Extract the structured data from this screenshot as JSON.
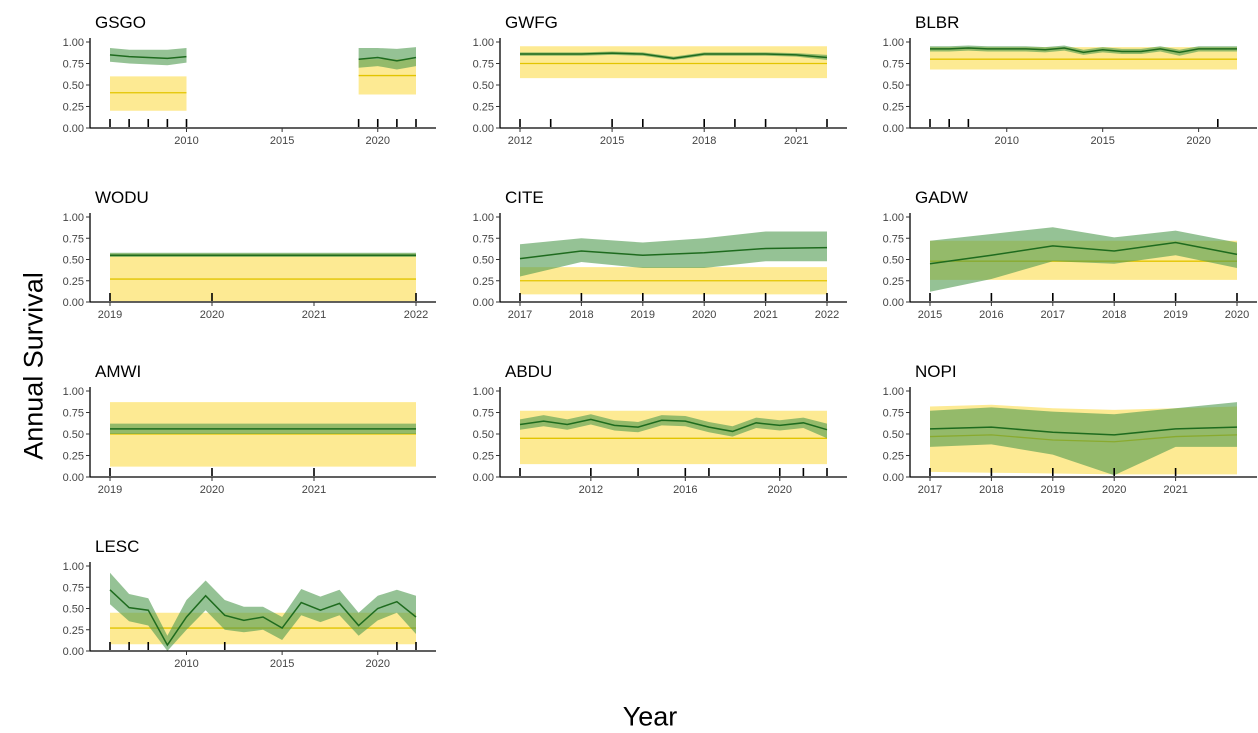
{
  "ylabel": "Annual Survival",
  "xlabel": "Year",
  "colors": {
    "fixed_band": "#fde680",
    "fixed_line": "#e2c400",
    "annual_band": "#4e9a4e",
    "annual_line": "#1e6b1e"
  },
  "chart_data": [
    {
      "type": "area",
      "title": "GSGO",
      "xlim": [
        2006,
        2022
      ],
      "ylim": [
        0,
        1
      ],
      "xticks": [
        2010,
        2015,
        2020
      ],
      "yticks": [
        0.0,
        0.25,
        0.5,
        0.75,
        1.0
      ],
      "rug": [
        2006,
        2007,
        2008,
        2009,
        2010,
        2019,
        2020,
        2021,
        2022
      ],
      "fixed_segments": [
        {
          "x": [
            2006,
            2010
          ],
          "mean": 0.41,
          "lower": 0.2,
          "upper": 0.6
        },
        {
          "x": [
            2019,
            2022
          ],
          "mean": 0.61,
          "lower": 0.39,
          "upper": 0.8
        }
      ],
      "annual_segments": [
        {
          "x": [
            2006,
            2007,
            2008,
            2009,
            2010
          ],
          "mean": [
            0.85,
            0.83,
            0.82,
            0.81,
            0.83
          ],
          "lower": [
            0.77,
            0.75,
            0.74,
            0.73,
            0.76
          ],
          "upper": [
            0.93,
            0.91,
            0.91,
            0.91,
            0.93
          ]
        },
        {
          "x": [
            2019,
            2020,
            2021,
            2022
          ],
          "mean": [
            0.8,
            0.82,
            0.78,
            0.82
          ],
          "lower": [
            0.7,
            0.72,
            0.68,
            0.72
          ],
          "upper": [
            0.93,
            0.93,
            0.92,
            0.94
          ]
        }
      ]
    },
    {
      "type": "area",
      "title": "GWFG",
      "xlim": [
        2012,
        2022
      ],
      "ylim": [
        0,
        1
      ],
      "xticks": [
        2012,
        2015,
        2018,
        2021
      ],
      "yticks": [
        0.0,
        0.25,
        0.5,
        0.75,
        1.0
      ],
      "rug": [
        2012,
        2013,
        2015,
        2016,
        2018,
        2019,
        2020,
        2022
      ],
      "fixed_segments": [
        {
          "x": [
            2012,
            2022
          ],
          "mean": 0.75,
          "lower": 0.58,
          "upper": 0.95
        }
      ],
      "annual_segments": [
        {
          "x": [
            2012,
            2013,
            2014,
            2015,
            2016,
            2017,
            2018,
            2019,
            2020,
            2021,
            2022
          ],
          "mean": [
            0.86,
            0.86,
            0.86,
            0.87,
            0.86,
            0.81,
            0.86,
            0.86,
            0.86,
            0.85,
            0.82
          ],
          "lower": [
            0.84,
            0.84,
            0.84,
            0.85,
            0.84,
            0.79,
            0.84,
            0.84,
            0.84,
            0.83,
            0.79
          ],
          "upper": [
            0.88,
            0.88,
            0.88,
            0.89,
            0.88,
            0.83,
            0.88,
            0.88,
            0.88,
            0.87,
            0.85
          ]
        }
      ]
    },
    {
      "type": "area",
      "title": "BLBR",
      "xlim": [
        2006,
        2022
      ],
      "ylim": [
        0,
        1
      ],
      "xticks": [
        2010,
        2015,
        2020
      ],
      "yticks": [
        0.0,
        0.25,
        0.5,
        0.75,
        1.0
      ],
      "rug": [
        2006,
        2007,
        2008,
        2021
      ],
      "fixed_segments": [
        {
          "x": [
            2006,
            2022
          ],
          "mean": 0.8,
          "lower": 0.68,
          "upper": 0.94
        }
      ],
      "annual_segments": [
        {
          "x": [
            2006,
            2007,
            2008,
            2009,
            2010,
            2011,
            2012,
            2013,
            2014,
            2015,
            2016,
            2017,
            2018,
            2019,
            2020,
            2021,
            2022
          ],
          "mean": [
            0.92,
            0.92,
            0.93,
            0.92,
            0.92,
            0.92,
            0.91,
            0.93,
            0.88,
            0.91,
            0.89,
            0.89,
            0.92,
            0.88,
            0.92,
            0.92,
            0.92
          ],
          "lower": [
            0.89,
            0.89,
            0.9,
            0.89,
            0.89,
            0.89,
            0.88,
            0.9,
            0.85,
            0.88,
            0.86,
            0.86,
            0.89,
            0.84,
            0.89,
            0.89,
            0.89
          ],
          "upper": [
            0.95,
            0.95,
            0.96,
            0.95,
            0.95,
            0.95,
            0.94,
            0.96,
            0.91,
            0.94,
            0.92,
            0.92,
            0.95,
            0.91,
            0.95,
            0.95,
            0.95
          ]
        }
      ]
    },
    {
      "type": "area",
      "title": "WODU",
      "xlim": [
        2019,
        2022
      ],
      "ylim": [
        0,
        1
      ],
      "xticks": [
        2019,
        2020,
        2021,
        2022
      ],
      "yticks": [
        0.0,
        0.25,
        0.5,
        0.75,
        1.0
      ],
      "rug": [
        2019,
        2020,
        2022
      ],
      "fixed_segments": [
        {
          "x": [
            2019,
            2022
          ],
          "mean": 0.27,
          "lower": 0.01,
          "upper": 0.57
        }
      ],
      "annual_segments": [
        {
          "x": [
            2019,
            2022
          ],
          "mean": [
            0.55,
            0.55
          ],
          "lower": [
            0.53,
            0.53
          ],
          "upper": [
            0.58,
            0.58
          ]
        }
      ]
    },
    {
      "type": "area",
      "title": "CITE",
      "xlim": [
        2017,
        2022
      ],
      "ylim": [
        0,
        1
      ],
      "xticks": [
        2017,
        2018,
        2019,
        2020,
        2021,
        2022
      ],
      "yticks": [
        0.0,
        0.25,
        0.5,
        0.75,
        1.0
      ],
      "rug": [
        2017,
        2018,
        2019,
        2020,
        2021,
        2022
      ],
      "fixed_segments": [
        {
          "x": [
            2017,
            2022
          ],
          "mean": 0.25,
          "lower": 0.09,
          "upper": 0.41
        }
      ],
      "annual_segments": [
        {
          "x": [
            2017,
            2018,
            2019,
            2020,
            2021,
            2022
          ],
          "mean": [
            0.51,
            0.6,
            0.55,
            0.58,
            0.63,
            0.64
          ],
          "lower": [
            0.3,
            0.47,
            0.4,
            0.4,
            0.48,
            0.48
          ],
          "upper": [
            0.68,
            0.75,
            0.7,
            0.75,
            0.83,
            0.83
          ]
        }
      ]
    },
    {
      "type": "area",
      "title": "GADW",
      "xlim": [
        2015,
        2020
      ],
      "ylim": [
        0,
        1
      ],
      "xticks": [
        2015,
        2016,
        2017,
        2018,
        2019,
        2020
      ],
      "yticks": [
        0.0,
        0.25,
        0.5,
        0.75,
        1.0
      ],
      "rug": [
        2015,
        2016,
        2017,
        2018,
        2019,
        2020
      ],
      "fixed_segments": [
        {
          "x": [
            2015,
            2020
          ],
          "mean": 0.48,
          "lower": 0.26,
          "upper": 0.72
        }
      ],
      "annual_segments": [
        {
          "x": [
            2015,
            2016,
            2017,
            2018,
            2019,
            2020
          ],
          "mean": [
            0.45,
            0.55,
            0.66,
            0.6,
            0.7,
            0.56
          ],
          "lower": [
            0.12,
            0.27,
            0.48,
            0.45,
            0.55,
            0.4
          ],
          "upper": [
            0.72,
            0.8,
            0.88,
            0.76,
            0.84,
            0.7
          ]
        }
      ]
    },
    {
      "type": "area",
      "title": "AMWI",
      "xlim": [
        2019,
        2022
      ],
      "ylim": [
        0,
        1
      ],
      "xticks": [
        2019,
        2020,
        2021
      ],
      "yticks": [
        0.0,
        0.25,
        0.5,
        0.75,
        1.0
      ],
      "rug": [
        2019,
        2020,
        2021
      ],
      "fixed_segments": [
        {
          "x": [
            2019,
            2022
          ],
          "mean": 0.5,
          "lower": 0.12,
          "upper": 0.87
        }
      ],
      "annual_segments": [
        {
          "x": [
            2019,
            2022
          ],
          "mean": [
            0.56,
            0.56
          ],
          "lower": [
            0.5,
            0.5
          ],
          "upper": [
            0.62,
            0.62
          ]
        }
      ]
    },
    {
      "type": "area",
      "title": "ABDU",
      "xlim": [
        2009,
        2022
      ],
      "ylim": [
        0,
        1
      ],
      "xticks": [
        2012,
        2016,
        2020
      ],
      "yticks": [
        0.0,
        0.25,
        0.5,
        0.75,
        1.0
      ],
      "rug": [
        2009,
        2012,
        2014,
        2016,
        2017,
        2020,
        2021,
        2022
      ],
      "fixed_segments": [
        {
          "x": [
            2009,
            2022
          ],
          "mean": 0.45,
          "lower": 0.15,
          "upper": 0.77
        }
      ],
      "annual_segments": [
        {
          "x": [
            2009,
            2010,
            2011,
            2012,
            2013,
            2014,
            2015,
            2016,
            2017,
            2018,
            2019,
            2020,
            2021,
            2022
          ],
          "mean": [
            0.61,
            0.65,
            0.61,
            0.67,
            0.6,
            0.58,
            0.66,
            0.65,
            0.58,
            0.53,
            0.63,
            0.6,
            0.63,
            0.55
          ],
          "lower": [
            0.55,
            0.59,
            0.55,
            0.61,
            0.54,
            0.52,
            0.6,
            0.59,
            0.52,
            0.47,
            0.57,
            0.54,
            0.57,
            0.45
          ],
          "upper": [
            0.67,
            0.72,
            0.67,
            0.73,
            0.66,
            0.64,
            0.72,
            0.71,
            0.64,
            0.59,
            0.69,
            0.66,
            0.69,
            0.62
          ]
        }
      ]
    },
    {
      "type": "area",
      "title": "NOPI",
      "xlim": [
        2017,
        2022
      ],
      "ylim": [
        0,
        1
      ],
      "xticks": [
        2017,
        2018,
        2019,
        2020,
        2021
      ],
      "yticks": [
        0.0,
        0.25,
        0.5,
        0.75,
        1.0
      ],
      "rug": [
        2017,
        2018,
        2019,
        2020,
        2021
      ],
      "fixed_segments": [
        {
          "x": [
            2017,
            2018,
            2019,
            2020,
            2021,
            2022
          ],
          "mean": [
            0.47,
            0.49,
            0.43,
            0.41,
            0.47,
            0.49
          ],
          "lower": [
            0.06,
            0.05,
            0.04,
            0.03,
            0.03,
            0.03
          ],
          "upper": [
            0.82,
            0.84,
            0.8,
            0.78,
            0.8,
            0.82
          ]
        }
      ],
      "annual_segments": [
        {
          "x": [
            2017,
            2018,
            2019,
            2020,
            2021,
            2022
          ],
          "mean": [
            0.56,
            0.58,
            0.52,
            0.49,
            0.56,
            0.58
          ],
          "lower": [
            0.35,
            0.38,
            0.26,
            0.02,
            0.35,
            0.35
          ],
          "upper": [
            0.77,
            0.81,
            0.76,
            0.73,
            0.8,
            0.87
          ]
        }
      ]
    },
    {
      "type": "area",
      "title": "LESC",
      "xlim": [
        2006,
        2022
      ],
      "ylim": [
        0,
        1
      ],
      "xticks": [
        2010,
        2015,
        2020
      ],
      "yticks": [
        0.0,
        0.25,
        0.5,
        0.75,
        1.0
      ],
      "rug": [
        2006,
        2007,
        2008,
        2012,
        2021,
        2022
      ],
      "fixed_segments": [
        {
          "x": [
            2006,
            2022
          ],
          "mean": 0.27,
          "lower": 0.08,
          "upper": 0.45
        }
      ],
      "annual_segments": [
        {
          "x": [
            2006,
            2007,
            2008,
            2009,
            2010,
            2011,
            2012,
            2013,
            2014,
            2015,
            2016,
            2017,
            2018,
            2019,
            2020,
            2021,
            2022
          ],
          "mean": [
            0.72,
            0.51,
            0.48,
            0.07,
            0.4,
            0.65,
            0.42,
            0.36,
            0.4,
            0.27,
            0.57,
            0.48,
            0.56,
            0.3,
            0.5,
            0.58,
            0.4
          ],
          "lower": [
            0.55,
            0.35,
            0.3,
            0.0,
            0.25,
            0.48,
            0.25,
            0.22,
            0.25,
            0.13,
            0.42,
            0.34,
            0.42,
            0.18,
            0.36,
            0.45,
            0.2
          ],
          "upper": [
            0.92,
            0.67,
            0.62,
            0.18,
            0.6,
            0.83,
            0.6,
            0.52,
            0.52,
            0.4,
            0.73,
            0.64,
            0.72,
            0.45,
            0.65,
            0.72,
            0.65
          ]
        }
      ]
    }
  ]
}
